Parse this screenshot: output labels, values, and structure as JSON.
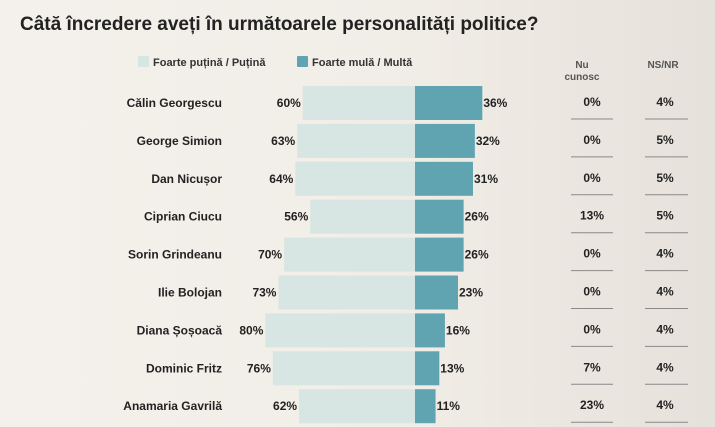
{
  "title": "Câtă încredere aveți în următoarele personalități politice?",
  "legend": {
    "low": "Foarte puțină / Puțină",
    "high": "Foarte mulă / Multă"
  },
  "columns": {
    "nu_cunosc": "Nu cunosc",
    "ns_nr": "NS/NR"
  },
  "colors": {
    "low": "#d7e6e2",
    "high": "#5fa4b0",
    "rule": "#8a8a8a",
    "text": "#222222"
  },
  "chart_data": {
    "type": "bar",
    "title": "Câtă încredere aveți în următoarele personalități politice?",
    "categories": [
      "Călin Georgescu",
      "George Simion",
      "Dan Nicușor",
      "Ciprian Ciucu",
      "Sorin Grindeanu",
      "Ilie Bolojan",
      "Diana Șoșoacă",
      "Dominic Fritz",
      "Anamaria Gavrilă"
    ],
    "series": [
      {
        "name": "Foarte puțină / Puțină",
        "values": [
          60,
          63,
          64,
          56,
          70,
          73,
          80,
          76,
          62
        ]
      },
      {
        "name": "Foarte mulă / Multă",
        "values": [
          36,
          32,
          31,
          26,
          26,
          23,
          16,
          13,
          11
        ]
      },
      {
        "name": "Nu cunosc",
        "values": [
          0,
          0,
          0,
          13,
          0,
          0,
          0,
          7,
          23
        ]
      },
      {
        "name": "NS/NR",
        "values": [
          4,
          5,
          5,
          5,
          4,
          4,
          4,
          4,
          4
        ]
      }
    ],
    "unit": "%",
    "layout": "diverging",
    "legend_position": "top"
  }
}
